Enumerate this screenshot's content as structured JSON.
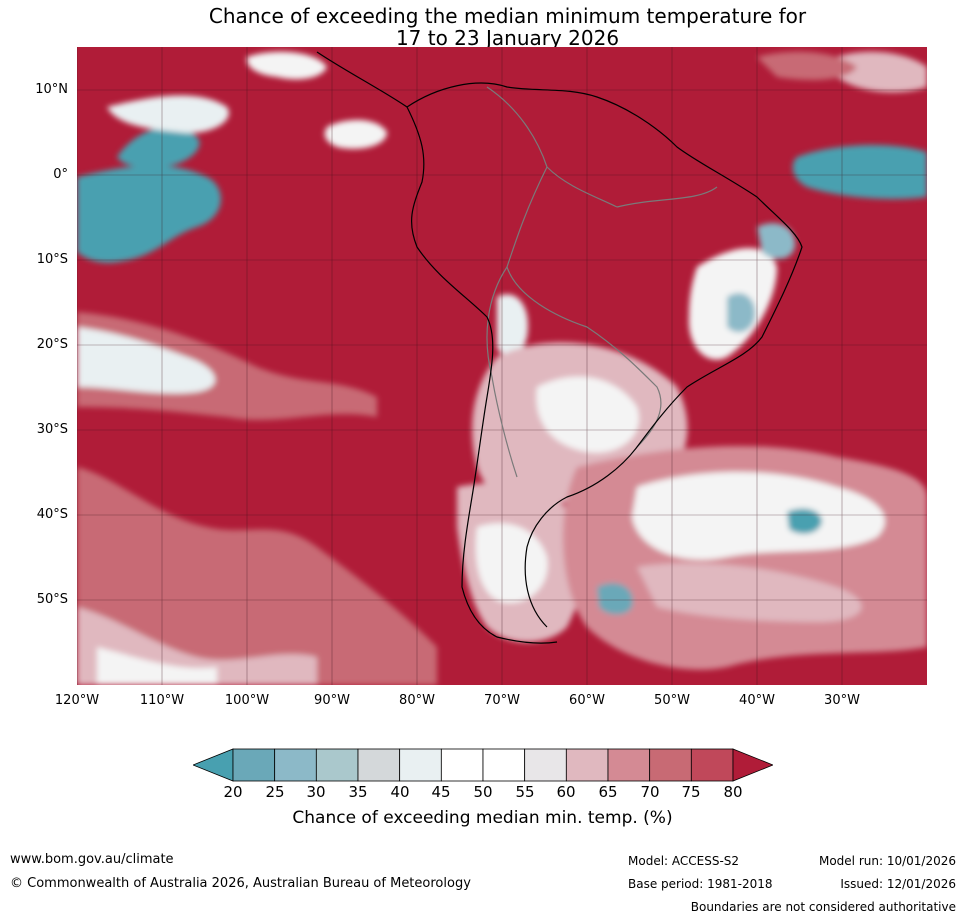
{
  "title": {
    "line1": "Chance of exceeding the median minimum temperature for",
    "line2": "17 to 23 January 2026"
  },
  "axes": {
    "lat_labels": [
      "10°N",
      "0°",
      "10°S",
      "20°S",
      "30°S",
      "40°S",
      "50°S"
    ],
    "lon_labels": [
      "120°W",
      "110°W",
      "100°W",
      "90°W",
      "80°W",
      "70°W",
      "60°W",
      "50°W",
      "40°W",
      "30°W"
    ]
  },
  "colorbar": {
    "ticks": [
      "20",
      "25",
      "30",
      "35",
      "40",
      "45",
      "50",
      "55",
      "60",
      "65",
      "70",
      "75",
      "80"
    ],
    "colors": [
      "#6aa8b8",
      "#8cb9c8",
      "#aac8cc",
      "#d4d8da",
      "#e9f0f2",
      "#ffffff",
      "#ffffff",
      "#e8e6e8",
      "#e0b8bf",
      "#d48a94",
      "#c86a74",
      "#c0485a"
    ],
    "under_color": "#48a0b0",
    "over_color": "#b01c38",
    "label": "Chance of exceeding median min. temp. (%)"
  },
  "colors": {
    "high": "#b01c38",
    "mid_high": "#c86a74",
    "light_pink": "#e0b8bf",
    "white": "#f4f4f4",
    "low": "#48a0b0",
    "low_light": "#8cb9c8"
  },
  "footer": {
    "url": "www.bom.gov.au/climate",
    "copyright": "© Commonwealth of Australia 2026, Australian Bureau of Meteorology",
    "model": "Model: ACCESS-S2",
    "base_period": "Base period: 1981-2018",
    "model_run": "Model run: 10/01/2026",
    "issued": "Issued: 12/01/2026",
    "disclaimer": "Boundaries are not considered authoritative"
  }
}
